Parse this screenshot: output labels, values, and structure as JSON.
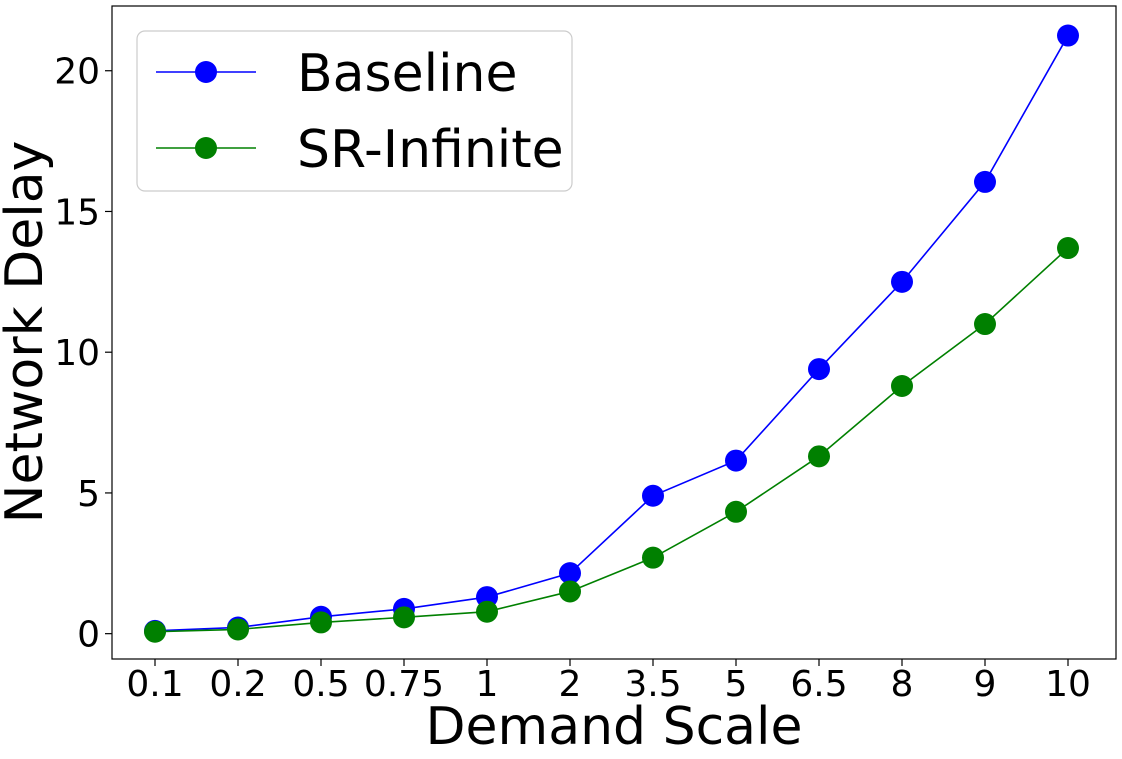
{
  "chart_data": {
    "type": "line",
    "title": "",
    "xlabel": "Demand Scale",
    "ylabel": "Network Delay",
    "categories": [
      "0.1",
      "0.2",
      "0.5",
      "0.75",
      "1",
      "2",
      "3.5",
      "5",
      "6.5",
      "8",
      "9",
      "10"
    ],
    "ylim": [
      -0.9,
      22.3
    ],
    "yticks": [
      0,
      5,
      10,
      15,
      20
    ],
    "grid": false,
    "legend_position": "top-left",
    "series": [
      {
        "name": "Baseline",
        "color": "#0000ff",
        "values": [
          0.1,
          0.22,
          0.6,
          0.88,
          1.3,
          2.15,
          4.9,
          6.15,
          9.4,
          12.5,
          16.05,
          21.25
        ]
      },
      {
        "name": "SR-Infinite",
        "color": "#008000",
        "values": [
          0.07,
          0.15,
          0.4,
          0.58,
          0.78,
          1.5,
          2.7,
          4.33,
          6.3,
          8.8,
          11.0,
          13.7
        ]
      }
    ]
  }
}
